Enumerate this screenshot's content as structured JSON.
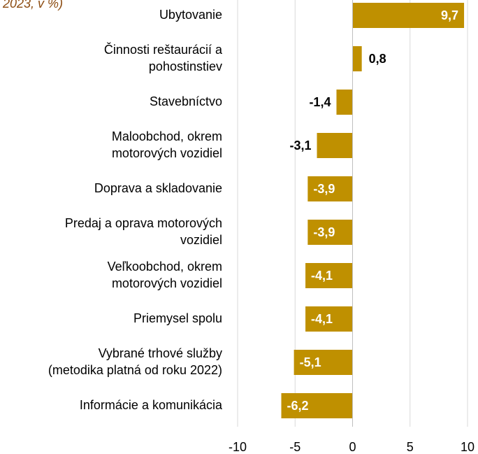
{
  "chart_data": {
    "type": "bar",
    "orientation": "horizontal",
    "title": "2023, v %)",
    "categories": [
      "Ubytovanie",
      "Činnosti reštaurácií a\npohostinstiev",
      "Stavebníctvo",
      "Maloobchod, okrem\nmotorových vozidiel",
      "Doprava a skladovanie",
      "Predaj a oprava motorových\nvozidiel",
      "Veľkoobchod, okrem\nmotorových vozidiel",
      "Priemysel spolu",
      "Vybrané trhové služby\n(metodika platná od roku 2022)",
      "Informácie a komunikácia"
    ],
    "values": [
      9.7,
      0.8,
      -1.4,
      -3.1,
      -3.9,
      -3.9,
      -4.1,
      -4.1,
      -5.1,
      -6.2
    ],
    "value_labels": [
      "9,7",
      "0,8",
      "-1,4",
      "-3,1",
      "-3,9",
      "-3,9",
      "-4,1",
      "-4,1",
      "-5,1",
      "-6,2"
    ],
    "color": "#bf9000",
    "xlim": [
      -10,
      10
    ],
    "xticks": [
      -10,
      -5,
      0,
      5,
      10
    ],
    "grid": true
  }
}
